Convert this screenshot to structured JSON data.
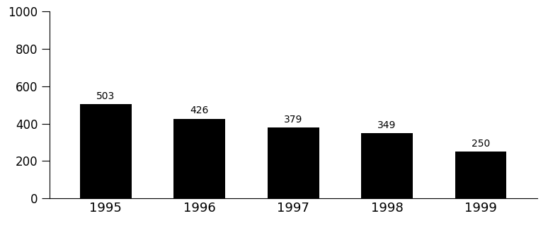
{
  "chart_data": {
    "type": "bar",
    "categories": [
      "1995",
      "1996",
      "1997",
      "1998",
      "1999"
    ],
    "values": [
      503,
      426,
      379,
      349,
      250
    ],
    "color": "#000000",
    "ylim": [
      0,
      1000
    ],
    "yticks": [
      0,
      200,
      400,
      600,
      800,
      1000
    ],
    "data_labels": true
  }
}
